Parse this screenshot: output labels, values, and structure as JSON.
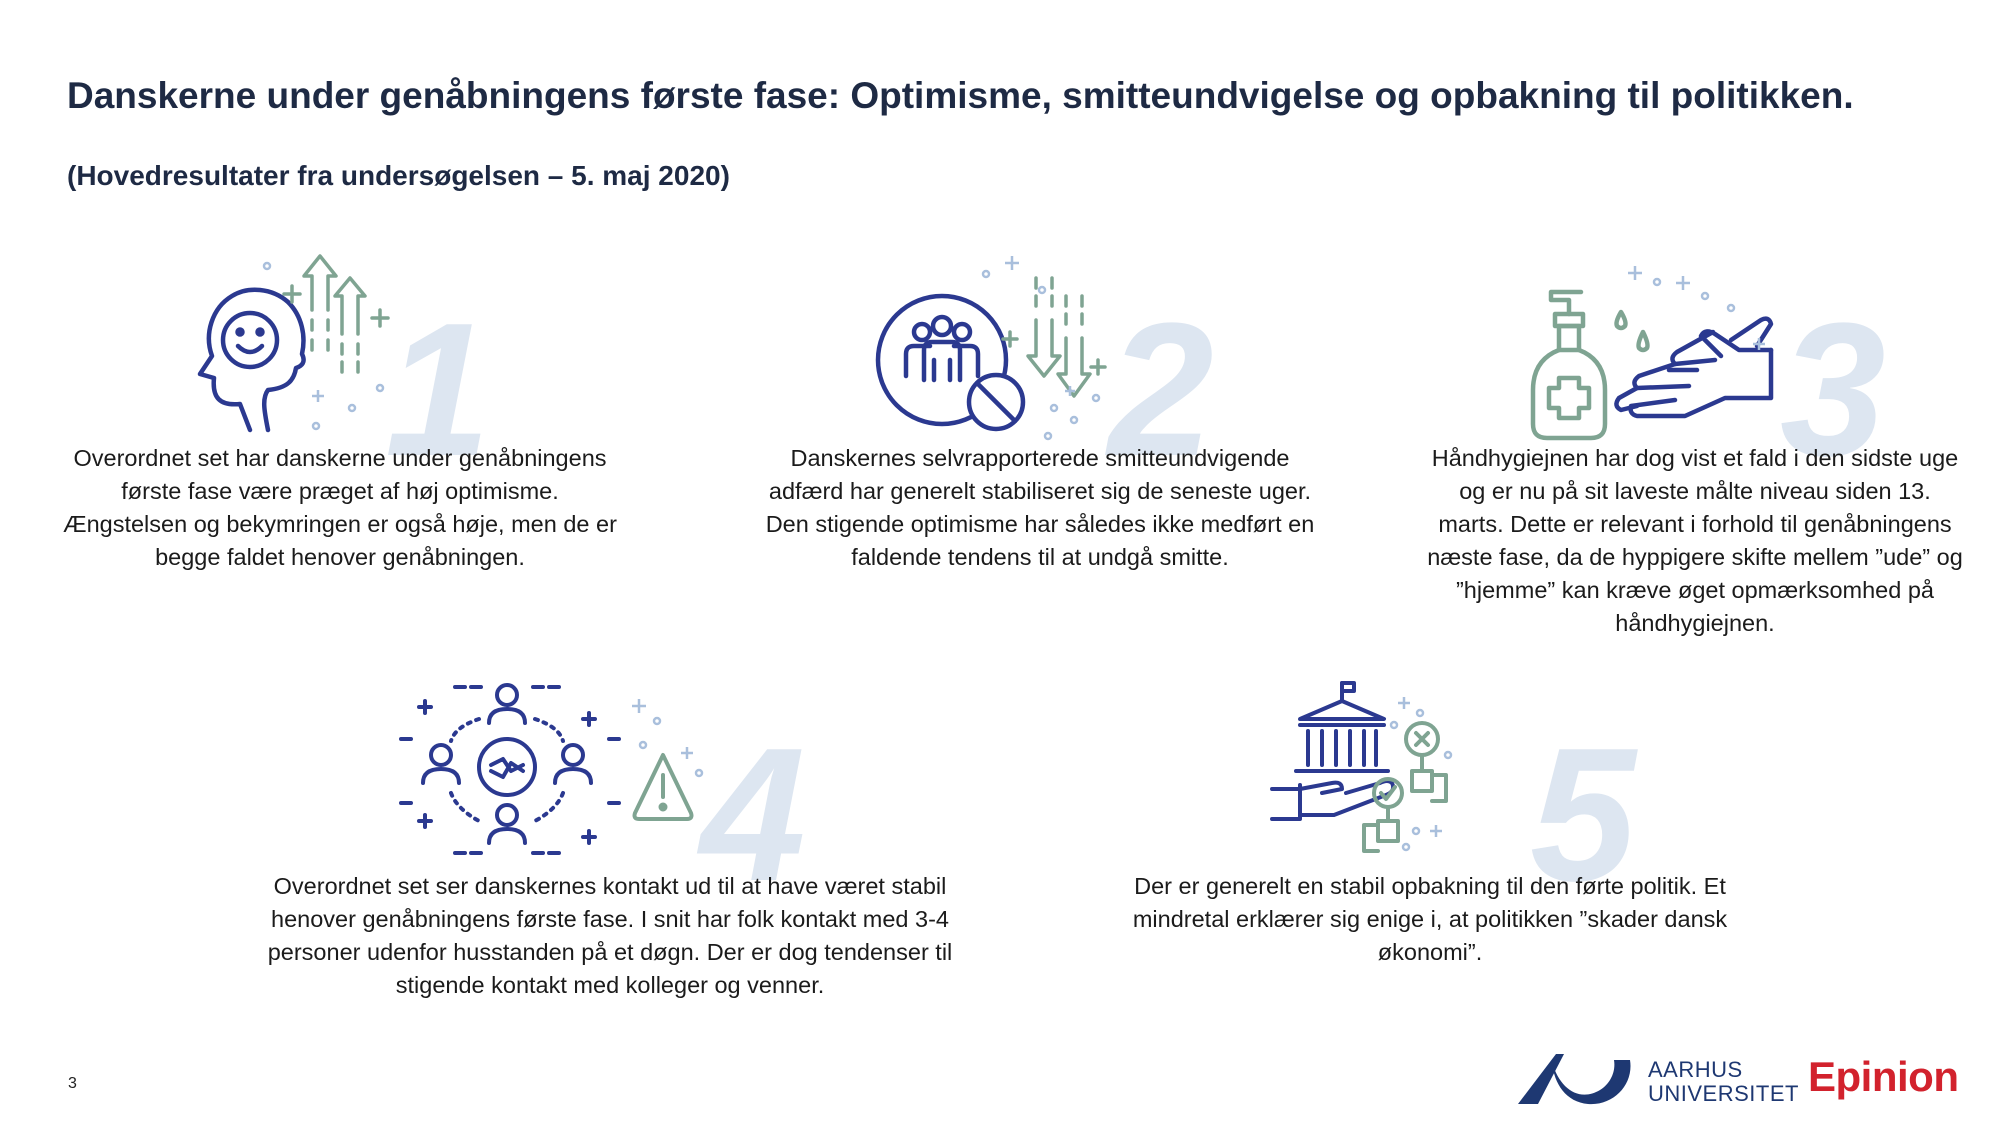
{
  "header": {
    "title": "Danskerne under genåbningens første fase: Optimisme, smitteundvigelse og opbakning til politikken.",
    "subtitle": "(Hovedresultater fra undersøgelsen – 5. maj 2020)"
  },
  "findings": [
    {
      "number": "1",
      "icon": "head-smile-arrows-up-icon",
      "text": "Overordnet set har danskerne under genåbningens første fase være præget af høj optimisme. Ængstelsen og bekymringen er også høje, men de er begge faldet henover genåbningen."
    },
    {
      "number": "2",
      "icon": "group-no-entry-arrows-down-icon",
      "text": "Danskernes selvrapporterede smitteundvigende adfærd har generelt stabiliseret sig de seneste uger. Den stigende optimisme har således ikke medført en faldende tendens til at undgå smitte."
    },
    {
      "number": "3",
      "icon": "hand-sanitizer-icon",
      "text": "Håndhygiejnen har dog vist et fald i den sidste uge og er nu på sit laveste målte niveau siden 13. marts. Dette er relevant i forhold til genåbningens næste fase, da de hyppigere skifte mellem ”ude” og ”hjemme” kan kræve øget opmærksomhed på håndhygiejnen."
    },
    {
      "number": "4",
      "icon": "social-contact-warning-icon",
      "text": "Overordnet set ser danskernes kontakt ud til at have været stabil henover genåbningens første fase. I snit har folk kontakt med 3-4 personer udenfor husstanden på et døgn. Der er dog tendenser til stigende kontakt med kolleger og venner."
    },
    {
      "number": "5",
      "icon": "government-support-vote-icon",
      "text": "Der er generelt en stabil opbakning til den førte politik. Et mindretal erklærer sig enige i, at politikken ”skader dansk økonomi”."
    }
  ],
  "footer": {
    "page_number": "3",
    "university_line1": "AARHUS",
    "university_line2": "UNIVERSITET",
    "partner": "Epinion"
  },
  "colors": {
    "navy": "#2b3990",
    "green": "#7fa492",
    "light_blue": "#a9bfdc",
    "number_bg": "#dde6f1",
    "title": "#1e2a44",
    "epinion_red": "#d2222d"
  }
}
